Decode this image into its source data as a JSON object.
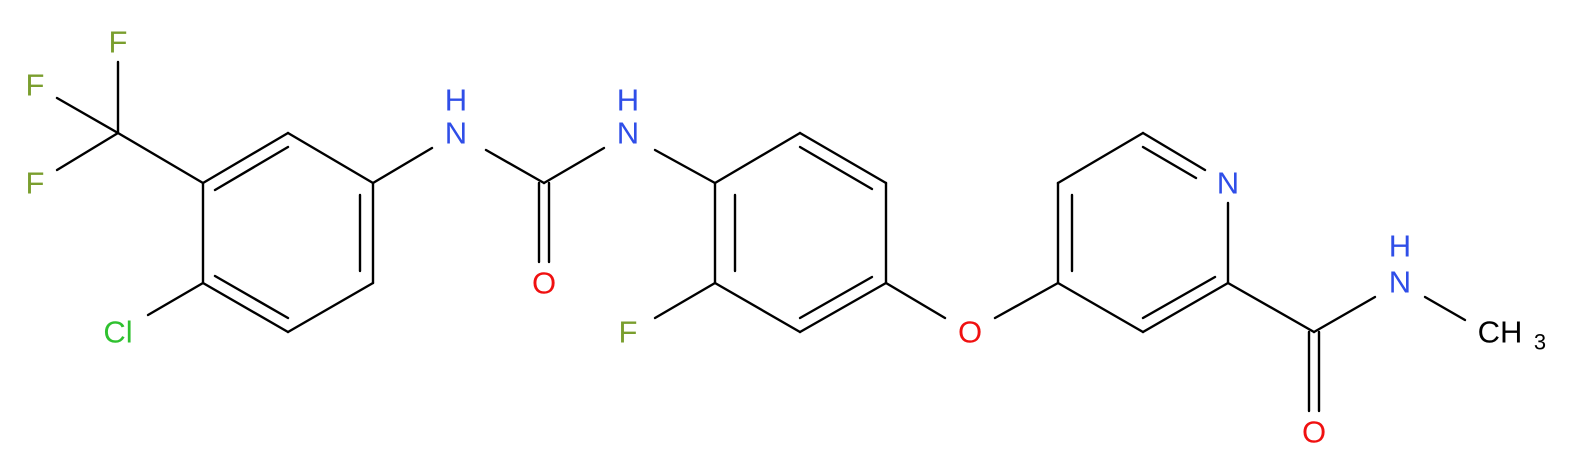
{
  "atoms": [
    {
      "label": "F"
    },
    {
      "label": "F"
    },
    {
      "label": "F"
    },
    {
      "label": "Cl"
    },
    {
      "label": "N",
      "h": "H"
    },
    {
      "label": "N",
      "h": "H"
    },
    {
      "label": "O"
    },
    {
      "label": "F"
    },
    {
      "label": "O"
    },
    {
      "label": "N"
    },
    {
      "label": "N",
      "h": "H"
    },
    {
      "label": "CH",
      "sub": "3"
    },
    {
      "label": "O"
    }
  ]
}
